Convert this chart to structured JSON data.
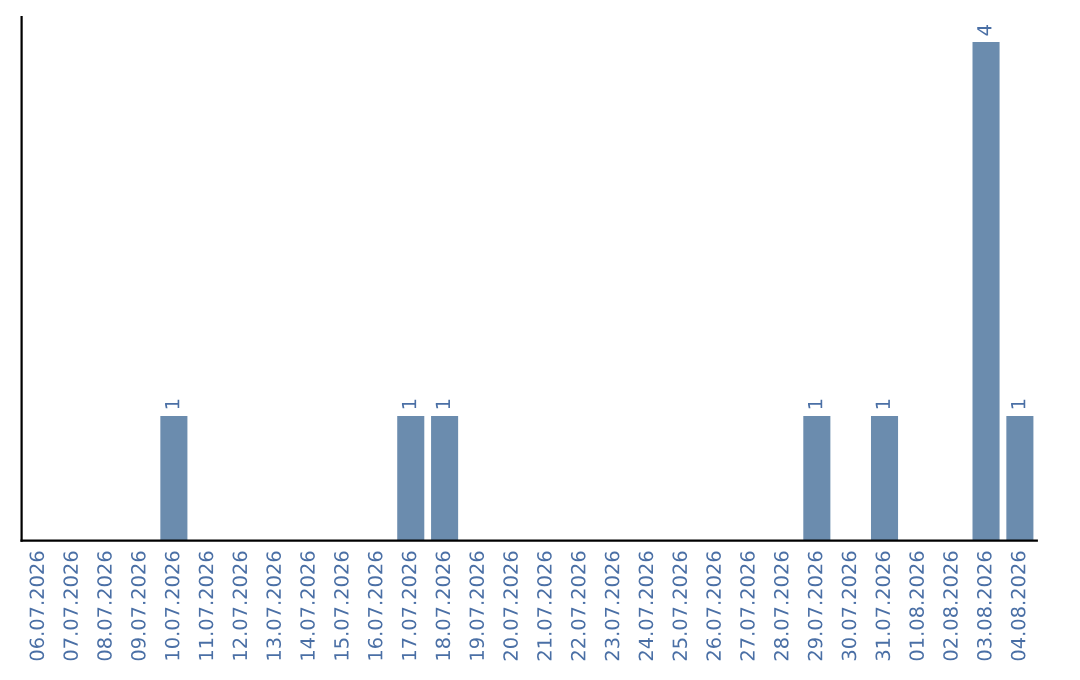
{
  "chart_data": {
    "type": "bar",
    "categories": [
      "06.07.2026",
      "07.07.2026",
      "08.07.2026",
      "09.07.2026",
      "10.07.2026",
      "11.07.2026",
      "12.07.2026",
      "13.07.2026",
      "14.07.2026",
      "15.07.2026",
      "16.07.2026",
      "17.07.2026",
      "18.07.2026",
      "19.07.2026",
      "20.07.2026",
      "21.07.2026",
      "22.07.2026",
      "23.07.2026",
      "24.07.2026",
      "25.07.2026",
      "26.07.2026",
      "27.07.2026",
      "28.07.2026",
      "29.07.2026",
      "30.07.2026",
      "31.07.2026",
      "01.08.2026",
      "02.08.2026",
      "03.08.2026",
      "04.08.2026"
    ],
    "values": [
      0,
      0,
      0,
      0,
      1,
      0,
      0,
      0,
      0,
      0,
      0,
      1,
      1,
      0,
      0,
      0,
      0,
      0,
      0,
      0,
      0,
      0,
      0,
      1,
      0,
      1,
      0,
      0,
      4,
      1
    ],
    "value_labels": [
      null,
      null,
      null,
      null,
      "1",
      null,
      null,
      null,
      null,
      null,
      null,
      "1",
      "1",
      null,
      null,
      null,
      null,
      null,
      null,
      null,
      null,
      null,
      null,
      "1",
      null,
      "1",
      null,
      null,
      "4",
      "1"
    ],
    "color": "#6b8cae",
    "tick_labels": "x",
    "grid": false
  }
}
